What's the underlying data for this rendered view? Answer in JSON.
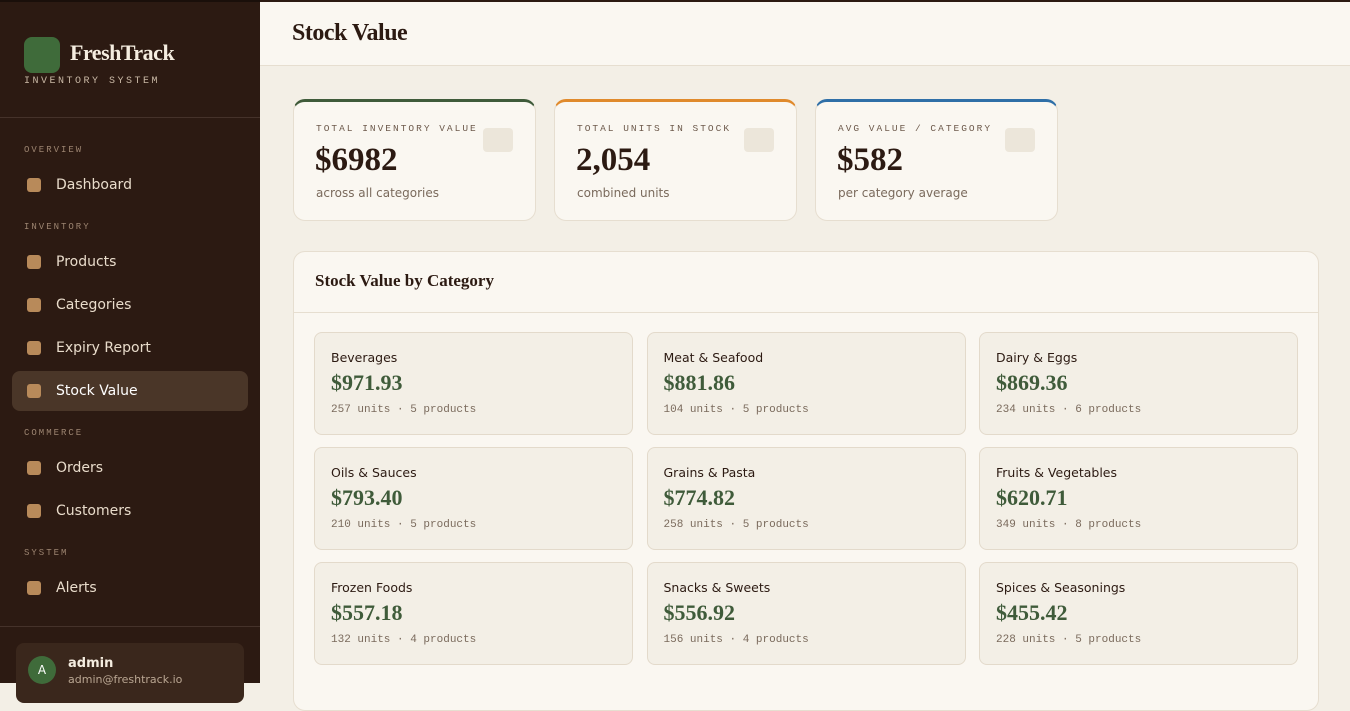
{
  "sidebar": {
    "brand": "FreshTrack",
    "tagline": "INVENTORY SYSTEM",
    "sections": [
      {
        "title": "OVERVIEW",
        "items": [
          {
            "label": "Dashboard"
          }
        ]
      },
      {
        "title": "INVENTORY",
        "items": [
          {
            "label": "Products"
          },
          {
            "label": "Categories"
          },
          {
            "label": "Expiry Report"
          },
          {
            "label": "Stock Value",
            "active": true
          }
        ]
      },
      {
        "title": "COMMERCE",
        "items": [
          {
            "label": "Orders"
          },
          {
            "label": "Customers"
          }
        ]
      },
      {
        "title": "SYSTEM",
        "items": [
          {
            "label": "Alerts"
          }
        ]
      }
    ],
    "user": {
      "initial": "A",
      "name": "admin",
      "email": "admin@freshtrack.io"
    }
  },
  "header": {
    "title": "Stock Value"
  },
  "stats": [
    {
      "label": "TOTAL INVENTORY VALUE",
      "value": "$6982",
      "note": "across all categories",
      "color": "#3f5b3a"
    },
    {
      "label": "TOTAL UNITS IN STOCK",
      "value": "2,054",
      "note": "combined units",
      "color": "#e08a2c"
    },
    {
      "label": "AVG VALUE / CATEGORY",
      "value": "$582",
      "note": "per category average",
      "color": "#2f6fa7"
    }
  ],
  "panel": {
    "title": "Stock Value by Category",
    "categories": [
      {
        "name": "Beverages",
        "value": "$971.93",
        "detail": "257 units · 5 products"
      },
      {
        "name": "Meat & Seafood",
        "value": "$881.86",
        "detail": "104 units · 5 products"
      },
      {
        "name": "Dairy & Eggs",
        "value": "$869.36",
        "detail": "234 units · 6 products"
      },
      {
        "name": "Oils & Sauces",
        "value": "$793.40",
        "detail": "210 units · 5 products"
      },
      {
        "name": "Grains & Pasta",
        "value": "$774.82",
        "detail": "258 units · 5 products"
      },
      {
        "name": "Fruits & Vegetables",
        "value": "$620.71",
        "detail": "349 units · 8 products"
      },
      {
        "name": "Frozen Foods",
        "value": "$557.18",
        "detail": "132 units · 4 products"
      },
      {
        "name": "Snacks & Sweets",
        "value": "$556.92",
        "detail": "156 units · 4 products"
      },
      {
        "name": "Spices & Seasonings",
        "value": "$455.42",
        "detail": "228 units · 5 products"
      }
    ]
  }
}
